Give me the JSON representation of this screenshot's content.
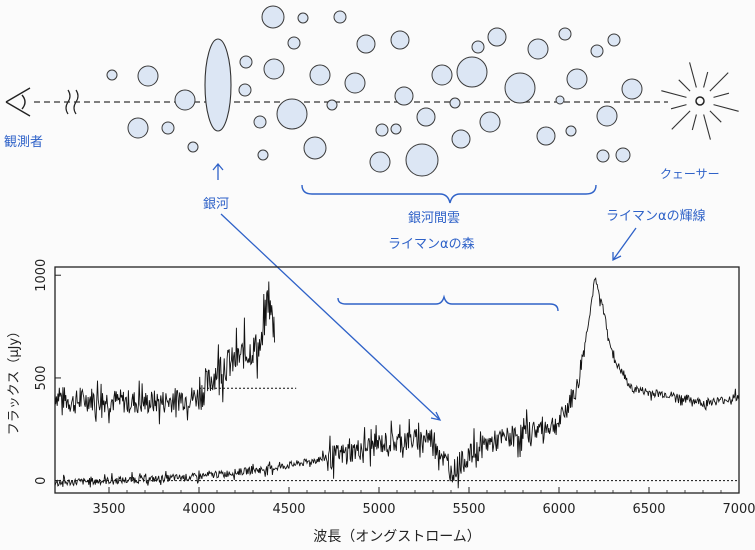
{
  "diagram": {
    "observer_label": "観測者",
    "quasar_label": "クェーサー",
    "galaxy_label": "銀河",
    "igm_label": "銀河間雲",
    "lyman_forest_label": "ライマンαの森",
    "lyman_alpha_line_label": "ライマンαの輝線",
    "colors": {
      "annotation": "#2f62c8",
      "cloud_fill": "#dce6f4",
      "cloud_stroke": "#3a3a3a",
      "line": "#222222"
    }
  },
  "chart_data": {
    "type": "line",
    "xlabel": "波長（オングストローム）",
    "ylabel": "フラックス（μJy）",
    "xlim": [
      3200,
      7000
    ],
    "ylim": [
      -60,
      1040
    ],
    "x_ticks": [
      "3500",
      "4000",
      "4500",
      "5000",
      "5500",
      "6000",
      "6500",
      "7000"
    ],
    "y_ticks": [
      "0",
      "500",
      "1000"
    ],
    "grid": false,
    "series": [
      {
        "description_role": "upper spectrum (galaxy)",
        "x": [
          3200,
          3300,
          3400,
          3500,
          3600,
          3700,
          3800,
          3900,
          4000,
          4050,
          4100,
          4150,
          4200,
          4250,
          4300,
          4350,
          4380,
          4420
        ],
        "y": [
          420,
          380,
          400,
          390,
          385,
          380,
          385,
          400,
          410,
          470,
          540,
          560,
          580,
          620,
          640,
          660,
          900,
          720
        ],
        "continuum_level": 450,
        "continuum_range": [
          4000,
          4540
        ]
      },
      {
        "description_role": "lower spectrum (quasar)",
        "x": [
          3200,
          3500,
          3800,
          4000,
          4200,
          4400,
          4600,
          4800,
          5000,
          5200,
          5300,
          5400,
          5500,
          5600,
          5800,
          6000,
          6100,
          6150,
          6200,
          6250,
          6300,
          6400,
          6500,
          6600,
          6700,
          6800,
          6900,
          7000
        ],
        "y": [
          -10,
          0,
          10,
          20,
          40,
          60,
          90,
          130,
          180,
          200,
          210,
          40,
          120,
          180,
          230,
          280,
          450,
          700,
          980,
          820,
          600,
          450,
          430,
          420,
          400,
          380,
          390,
          410
        ],
        "continuum_level": 0,
        "continuum_range": [
          3200,
          7000
        ]
      }
    ]
  }
}
